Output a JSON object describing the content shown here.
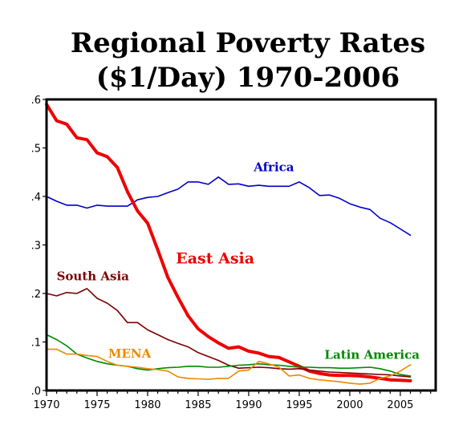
{
  "chart_data": {
    "type": "line",
    "title_lines": [
      "Regional Poverty Rates",
      "($1/Day)  1970-2006"
    ],
    "xlim": [
      1970,
      2008.5
    ],
    "ylim": [
      0,
      0.6
    ],
    "x_ticks": [
      1970,
      1975,
      1980,
      1985,
      1990,
      1995,
      2000,
      2005
    ],
    "x_tick_labels": [
      "1970",
      "1975",
      "1980",
      "1985",
      "1990",
      "1995",
      "2000",
      "2005"
    ],
    "y_ticks": [
      0,
      0.1,
      0.2,
      0.3,
      0.4,
      0.5,
      0.6
    ],
    "y_tick_labels": [
      ".0",
      ".1",
      ".2",
      ".3",
      ".4",
      ".5",
      ".6"
    ],
    "grid": false,
    "legend": "none (series labeled directly on the plot)",
    "x": [
      1970,
      1971,
      1972,
      1973,
      1974,
      1975,
      1976,
      1977,
      1978,
      1979,
      1980,
      1981,
      1982,
      1983,
      1984,
      1985,
      1986,
      1987,
      1988,
      1989,
      1990,
      1991,
      1992,
      1993,
      1994,
      1995,
      1996,
      1997,
      1998,
      1999,
      2000,
      2001,
      2002,
      2003,
      2004,
      2005,
      2006
    ],
    "series": [
      {
        "name": "Africa",
        "color": "#0000cc",
        "values": [
          0.4,
          0.39,
          0.382,
          0.382,
          0.376,
          0.382,
          0.38,
          0.38,
          0.38,
          0.393,
          0.398,
          0.4,
          0.408,
          0.415,
          0.43,
          0.43,
          0.425,
          0.44,
          0.425,
          0.426,
          0.421,
          0.423,
          0.421,
          0.421,
          0.421,
          0.43,
          0.418,
          0.402,
          0.403,
          0.396,
          0.385,
          0.378,
          0.373,
          0.355,
          0.346,
          0.333,
          0.32
        ]
      },
      {
        "name": "East Asia",
        "color": "#ee0000",
        "values": [
          0.59,
          0.556,
          0.549,
          0.521,
          0.517,
          0.49,
          0.482,
          0.46,
          0.41,
          0.37,
          0.345,
          0.29,
          0.233,
          0.192,
          0.154,
          0.127,
          0.111,
          0.098,
          0.087,
          0.09,
          0.081,
          0.077,
          0.07,
          0.068,
          0.059,
          0.05,
          0.04,
          0.035,
          0.032,
          0.031,
          0.031,
          0.03,
          0.028,
          0.025,
          0.022,
          0.021,
          0.02
        ]
      },
      {
        "name": "South Asia",
        "color": "#7a0000",
        "values": [
          0.2,
          0.195,
          0.202,
          0.2,
          0.21,
          0.19,
          0.18,
          0.165,
          0.14,
          0.14,
          0.125,
          0.115,
          0.105,
          0.097,
          0.09,
          0.078,
          0.07,
          0.062,
          0.052,
          0.046,
          0.047,
          0.048,
          0.047,
          0.045,
          0.044,
          0.045,
          0.042,
          0.04,
          0.038,
          0.037,
          0.036,
          0.035,
          0.034,
          0.033,
          0.032,
          0.03,
          0.028
        ]
      },
      {
        "name": "Latin America",
        "color": "#008800",
        "values": [
          0.115,
          0.105,
          0.092,
          0.075,
          0.067,
          0.06,
          0.055,
          0.052,
          0.05,
          0.045,
          0.042,
          0.045,
          0.047,
          0.048,
          0.05,
          0.05,
          0.048,
          0.048,
          0.05,
          0.052,
          0.053,
          0.055,
          0.053,
          0.052,
          0.05,
          0.048,
          0.048,
          0.047,
          0.047,
          0.046,
          0.046,
          0.047,
          0.048,
          0.045,
          0.04,
          0.033,
          0.03
        ]
      },
      {
        "name": "MENA",
        "color": "#ee8800",
        "values": [
          0.085,
          0.085,
          0.075,
          0.075,
          0.072,
          0.07,
          0.06,
          0.052,
          0.05,
          0.048,
          0.045,
          0.043,
          0.04,
          0.028,
          0.025,
          0.024,
          0.023,
          0.025,
          0.025,
          0.04,
          0.042,
          0.06,
          0.055,
          0.048,
          0.03,
          0.032,
          0.025,
          0.022,
          0.02,
          0.018,
          0.015,
          0.013,
          0.015,
          0.025,
          0.03,
          0.04,
          0.053
        ]
      }
    ],
    "annotations": [
      {
        "text": "Africa",
        "series": "Africa",
        "at": [
          1990.5,
          0.452
        ]
      },
      {
        "text": "East Asia",
        "series": "East Asia",
        "at": [
          1982.8,
          0.262
        ]
      },
      {
        "text": "South Asia",
        "series": "South Asia",
        "at": [
          1971.0,
          0.227
        ]
      },
      {
        "text": "MENA",
        "series": "MENA",
        "at": [
          1976.1,
          0.068
        ]
      },
      {
        "text": "Latin America",
        "series": "Latin America",
        "at": [
          1997.5,
          0.065
        ]
      }
    ]
  }
}
